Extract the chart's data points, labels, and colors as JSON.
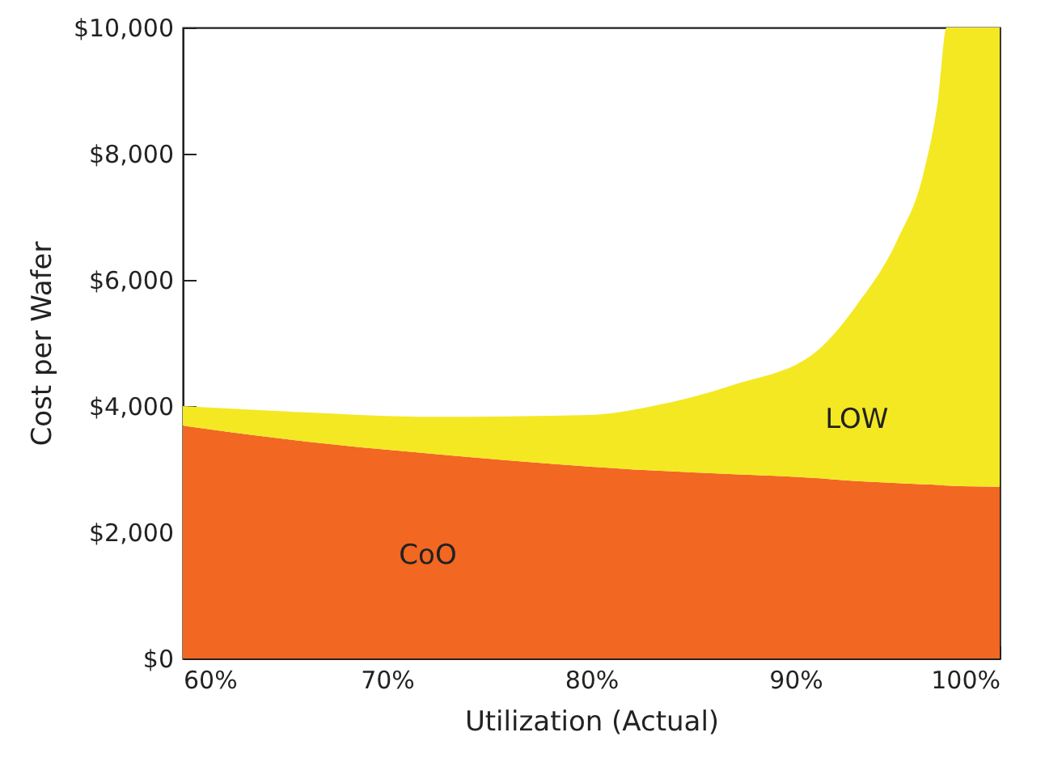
{
  "chart_data": {
    "type": "area",
    "stacked": true,
    "xlabel": "Utilization (Actual)",
    "ylabel": "Cost per Wafer",
    "x": [
      60,
      66,
      72,
      80,
      83,
      87,
      91,
      93,
      95,
      96.3,
      97,
      97.4,
      100
    ],
    "series": [
      {
        "name": "CoO",
        "color": "#f26722",
        "values": [
          3690,
          3440,
          3250,
          3040,
          2980,
          2920,
          2860,
          2810,
          2780,
          2760,
          2750,
          2740,
          2720
        ]
      },
      {
        "name": "LOW",
        "color": "#f4e823",
        "values": [
          310,
          460,
          580,
          820,
          1020,
          1420,
          2000,
          2790,
          3860,
          4970,
          6150,
          7260,
          7280
        ]
      }
    ],
    "xlim": [
      60,
      100
    ],
    "xticks": [
      {
        "value": 60,
        "label": "60%"
      },
      {
        "value": 70,
        "label": "70%"
      },
      {
        "value": 80,
        "label": "80%"
      },
      {
        "value": 90,
        "label": "90%"
      },
      {
        "value": 100,
        "label": "100%"
      }
    ],
    "ylim": [
      0,
      10000
    ],
    "yticks": [
      {
        "value": 0,
        "label": "$0"
      },
      {
        "value": 2000,
        "label": "$2,000"
      },
      {
        "value": 4000,
        "label": "$4,000"
      },
      {
        "value": 6000,
        "label": "$6,000"
      },
      {
        "value": 8000,
        "label": "$8,000"
      },
      {
        "value": 10000,
        "label": "$10,000"
      }
    ],
    "grid": false,
    "legend": false
  }
}
